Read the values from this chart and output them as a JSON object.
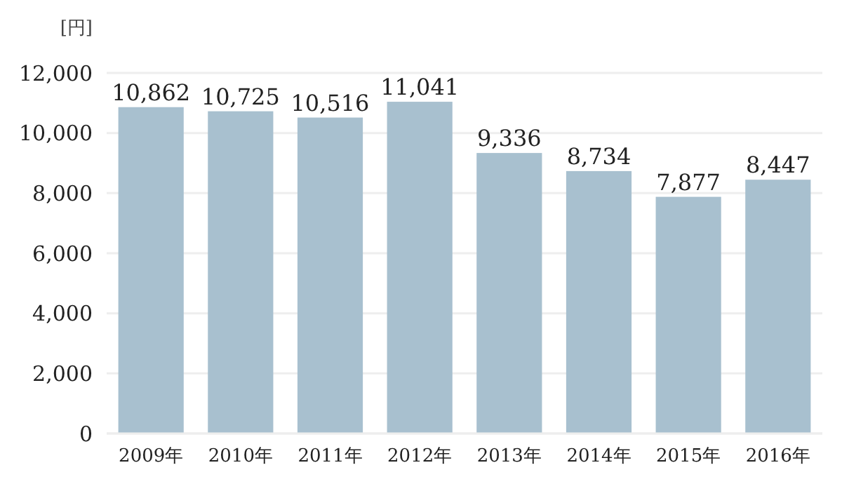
{
  "chart_data": {
    "type": "bar",
    "ylabel": "[円]",
    "categories": [
      "2009年",
      "2010年",
      "2011年",
      "2012年",
      "2013年",
      "2014年",
      "2015年",
      "2016年"
    ],
    "values": [
      10862,
      10725,
      10516,
      11041,
      9336,
      8734,
      7877,
      8447
    ],
    "color": "#a8c0cf",
    "ylim": [
      0,
      12000
    ],
    "yticks": [
      {
        "value": 0,
        "label": "0"
      },
      {
        "value": 2000,
        "label": "2,000"
      },
      {
        "value": 4000,
        "label": "4,000"
      },
      {
        "value": 6000,
        "label": "6,000"
      },
      {
        "value": 8000,
        "label": "8,000"
      },
      {
        "value": 10000,
        "label": "10,000"
      },
      {
        "value": 12000,
        "label": "12,000"
      }
    ],
    "value_labels": [
      "10,862",
      "10,725",
      "10,516",
      "11,041",
      "9,336",
      "8,734",
      "7,877",
      "8,447"
    ],
    "grid": "y"
  }
}
